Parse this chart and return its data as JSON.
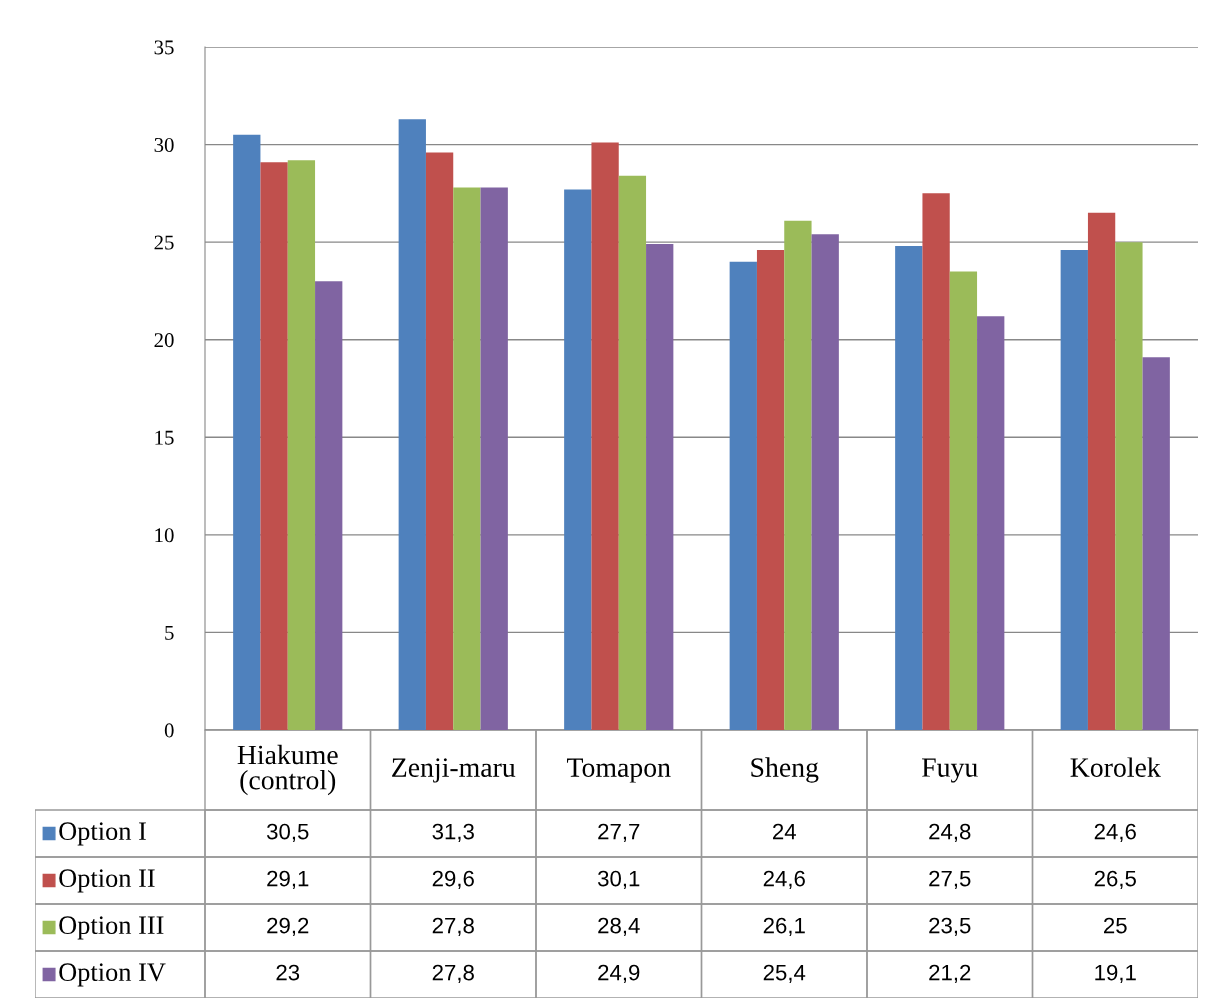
{
  "chart_data": {
    "type": "bar",
    "categories": [
      "Hiakume\n(control)",
      "Zenji-maru",
      "Tomapon",
      "Sheng",
      "Fuyu",
      "Korolek"
    ],
    "series": [
      {
        "name": "Option I",
        "color": "#4f81bd",
        "values": [
          30.5,
          31.3,
          27.7,
          24,
          24.8,
          24.6
        ],
        "value_labels": [
          "30,5",
          "31,3",
          "27,7",
          "24",
          "24,8",
          "24,6"
        ]
      },
      {
        "name": "Option II",
        "color": "#c0504d",
        "values": [
          29.1,
          29.6,
          30.1,
          24.6,
          27.5,
          26.5
        ],
        "value_labels": [
          "29,1",
          "29,6",
          "30,1",
          "24,6",
          "27,5",
          "26,5"
        ]
      },
      {
        "name": "Option III",
        "color": "#9bbb59",
        "values": [
          29.2,
          27.8,
          28.4,
          26.1,
          23.5,
          25
        ],
        "value_labels": [
          "29,2",
          "27,8",
          "28,4",
          "26,1",
          "23,5",
          "25"
        ]
      },
      {
        "name": "Option IV",
        "color": "#8064a2",
        "values": [
          23,
          27.8,
          24.9,
          25.4,
          21.2,
          19.1
        ],
        "value_labels": [
          "23",
          "27,8",
          "24,9",
          "25,4",
          "21,2",
          "19,1"
        ]
      }
    ],
    "ylim": [
      0,
      35
    ],
    "yticks": [
      0,
      5,
      10,
      15,
      20,
      25,
      30,
      35
    ],
    "grid": "y",
    "legend": "bottom"
  }
}
